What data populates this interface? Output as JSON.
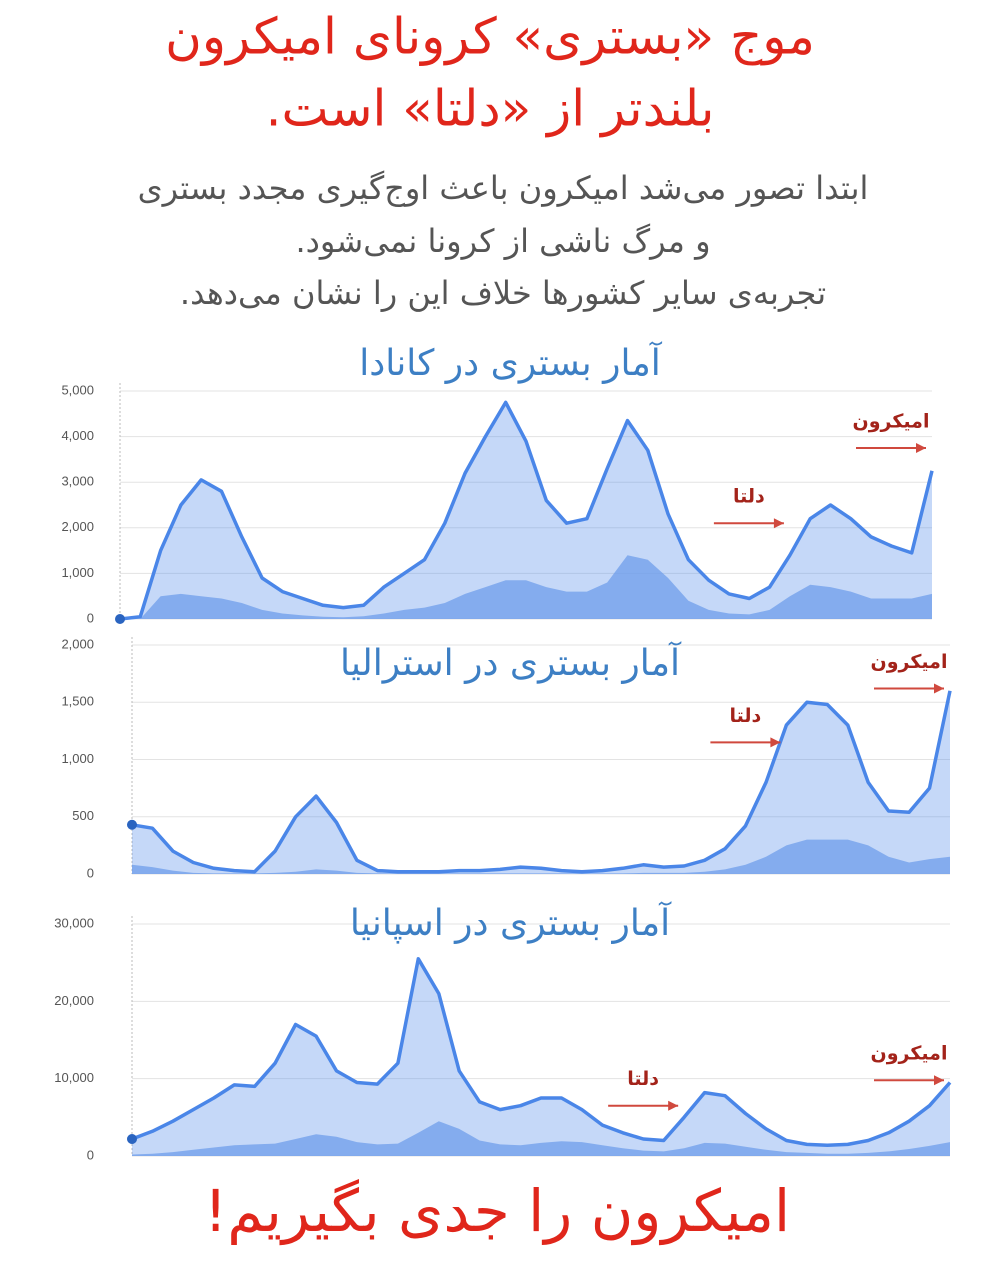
{
  "header": {
    "title": [
      "موج «بستری» کرونای امیکرون",
      "بلندتر از «دلتا» است."
    ],
    "subtitle": [
      "ابتدا تصور می‌شد امیکرون باعث اوج‌گیری مجدد بستری",
      "و مرگ ناشی از کرونا نمی‌شود.",
      "تجربه‌ی سایر کشورها خلاف این را نشان می‌دهد."
    ]
  },
  "chart_data": [
    {
      "type": "area",
      "title": "آمار بستری در کانادا",
      "title_color": "#3d7fc4",
      "categories": [
        null,
        null,
        null,
        null,
        null,
        null,
        null,
        null,
        null,
        null,
        null,
        null,
        null,
        null,
        null,
        null,
        null,
        null,
        null,
        null,
        null,
        null,
        null,
        null,
        null,
        null,
        null,
        null,
        null,
        null,
        null,
        null,
        null,
        null,
        null,
        null,
        null,
        null,
        null,
        null,
        null
      ],
      "series": [
        {
          "color": "#4a86e8",
          "values": [
            0,
            50,
            1500,
            2500,
            3050,
            2800,
            1800,
            900,
            600,
            450,
            300,
            250,
            300,
            700,
            1000,
            1300,
            2100,
            3200,
            4000,
            4750,
            3900,
            2600,
            2100,
            2200,
            3300,
            4350,
            3700,
            2300,
            1300,
            850,
            550,
            450,
            700,
            1400,
            2200,
            2500,
            2200,
            1800,
            1600,
            1450,
            3250
          ]
        },
        {
          "color": "#6d9eeb",
          "values": [
            0,
            0,
            500,
            550,
            500,
            450,
            350,
            200,
            120,
            80,
            50,
            40,
            60,
            120,
            200,
            250,
            350,
            550,
            700,
            850,
            850,
            700,
            600,
            600,
            800,
            1400,
            1300,
            900,
            400,
            200,
            120,
            100,
            200,
            500,
            750,
            700,
            600,
            450,
            450,
            450,
            550
          ]
        }
      ],
      "ylim": [
        0,
        5000
      ],
      "yticks": [
        0,
        {
          "value": 1000,
          "label": "1,000"
        },
        {
          "value": 2000,
          "label": "2,000"
        },
        {
          "value": 3000,
          "label": "3,000"
        },
        {
          "value": 4000,
          "label": "4,000"
        },
        {
          "value": 5000,
          "label": "5,000"
        }
      ],
      "grid": true,
      "annotations": [
        {
          "text": "دلتا",
          "x": 33,
          "y": 2100
        },
        {
          "text": "امیکرون",
          "x": 40,
          "y": 3750
        }
      ]
    },
    {
      "type": "area",
      "title": "آمار بستری در استرالیا",
      "title_color": "#3d7fc4",
      "categories": [
        null,
        null,
        null,
        null,
        null,
        null,
        null,
        null,
        null,
        null,
        null,
        null,
        null,
        null,
        null,
        null,
        null,
        null,
        null,
        null,
        null,
        null,
        null,
        null,
        null,
        null,
        null,
        null,
        null,
        null,
        null,
        null,
        null,
        null,
        null,
        null,
        null,
        null,
        null,
        null,
        null
      ],
      "series": [
        {
          "color": "#4a86e8",
          "values": [
            430,
            400,
            200,
            100,
            50,
            30,
            20,
            200,
            500,
            680,
            450,
            120,
            30,
            20,
            20,
            20,
            30,
            30,
            40,
            60,
            50,
            30,
            20,
            30,
            50,
            80,
            60,
            70,
            120,
            220,
            420,
            800,
            1300,
            1500,
            1480,
            1300,
            800,
            550,
            540,
            750,
            1600
          ]
        },
        {
          "color": "#6d9eeb",
          "values": [
            80,
            60,
            30,
            10,
            5,
            5,
            5,
            10,
            20,
            40,
            30,
            10,
            5,
            5,
            5,
            5,
            5,
            5,
            5,
            5,
            5,
            5,
            5,
            5,
            5,
            10,
            10,
            10,
            20,
            40,
            80,
            150,
            250,
            300,
            300,
            300,
            250,
            150,
            100,
            130,
            150
          ]
        }
      ],
      "ylim": [
        0,
        2000
      ],
      "yticks": [
        0,
        500,
        {
          "value": 1000,
          "label": "1,000"
        },
        {
          "value": 1500,
          "label": "1,500"
        },
        {
          "value": 2000,
          "label": "2,000"
        }
      ],
      "grid": true,
      "annotations": [
        {
          "text": "دلتا",
          "x": 32,
          "y": 1150
        },
        {
          "text": "امیکرون",
          "x": 40,
          "y": 1620
        }
      ]
    },
    {
      "type": "area",
      "title": "آمار بستری در اسپانیا",
      "title_color": "#3d7fc4",
      "categories": [
        null,
        null,
        null,
        null,
        null,
        null,
        null,
        null,
        null,
        null,
        null,
        null,
        null,
        null,
        null,
        null,
        null,
        null,
        null,
        null,
        null,
        null,
        null,
        null,
        null,
        null,
        null,
        null,
        null,
        null,
        null,
        null,
        null,
        null,
        null,
        null,
        null,
        null,
        null,
        null,
        null
      ],
      "series": [
        {
          "color": "#4a86e8",
          "values": [
            2200,
            3200,
            4500,
            6000,
            7500,
            9200,
            9000,
            12000,
            17000,
            15500,
            11000,
            9500,
            9300,
            12000,
            25500,
            21000,
            11000,
            7000,
            6000,
            6500,
            7500,
            7500,
            6000,
            4000,
            3000,
            2200,
            2000,
            5000,
            8200,
            7800,
            5500,
            3500,
            2000,
            1500,
            1400,
            1500,
            2000,
            3000,
            4500,
            6500,
            9500
          ]
        },
        {
          "color": "#6d9eeb",
          "values": [
            200,
            300,
            500,
            800,
            1100,
            1400,
            1500,
            1600,
            2200,
            2800,
            2500,
            1800,
            1500,
            1600,
            3000,
            4500,
            3500,
            2000,
            1500,
            1400,
            1700,
            1900,
            1800,
            1400,
            1000,
            700,
            600,
            1000,
            1700,
            1600,
            1200,
            800,
            500,
            400,
            300,
            300,
            400,
            600,
            900,
            1300,
            1800
          ]
        }
      ],
      "ylim": [
        0,
        30000
      ],
      "yticks": [
        0,
        {
          "value": 10000,
          "label": "10,000"
        },
        {
          "value": 20000,
          "label": "20,000"
        },
        {
          "value": 30000,
          "label": "30,000"
        }
      ],
      "grid": true,
      "annotations": [
        {
          "text": "دلتا",
          "x": 27,
          "y": 6500
        },
        {
          "text": "امیکرون",
          "x": 40,
          "y": 9800
        }
      ]
    }
  ],
  "footer": {
    "text": "امیکرون را جدی بگیریم!"
  }
}
